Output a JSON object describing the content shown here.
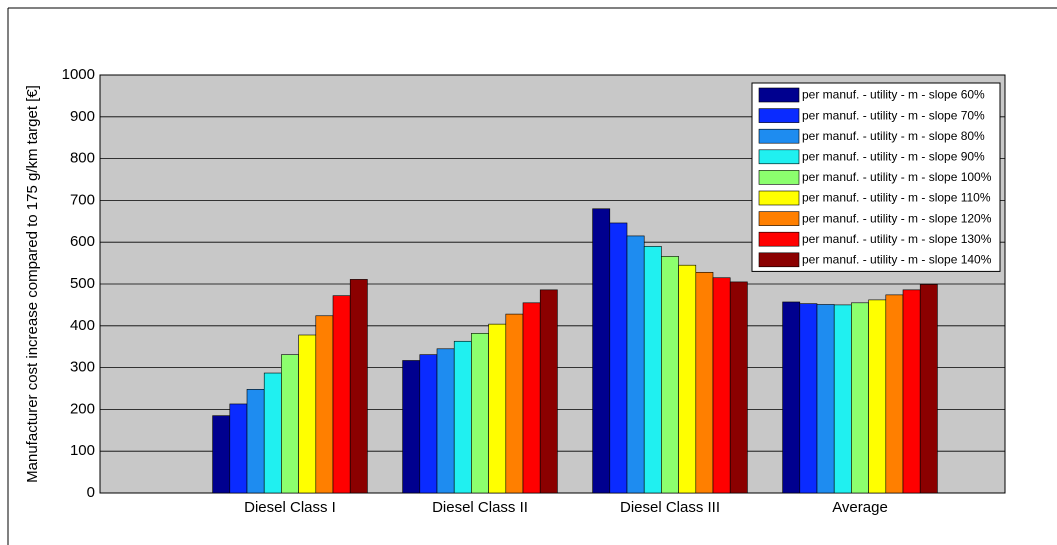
{
  "chart_data": {
    "type": "bar",
    "y_label": "Manufacturer cost increase compared to 175 g/km target [€]",
    "categories": [
      "Diesel Class I",
      "Diesel Class II",
      "Diesel Class III",
      "Average"
    ],
    "series": [
      {
        "name": "per manuf. - utility - m - slope 60%",
        "color": "#00008f",
        "values": [
          185,
          317,
          680,
          457
        ]
      },
      {
        "name": "per manuf. - utility - m - slope 70%",
        "color": "#0a2bff",
        "values": [
          213,
          331,
          646,
          453
        ]
      },
      {
        "name": "per manuf. - utility - m - slope 80%",
        "color": "#1e8cf0",
        "values": [
          248,
          345,
          615,
          451
        ]
      },
      {
        "name": "per manuf. - utility - m - slope 90%",
        "color": "#20f0f0",
        "values": [
          287,
          363,
          590,
          450
        ]
      },
      {
        "name": "per manuf. - utility - m - slope 100%",
        "color": "#8cff6e",
        "values": [
          331,
          382,
          566,
          455
        ]
      },
      {
        "name": "per manuf. - utility - m - slope 110%",
        "color": "#ffff00",
        "values": [
          378,
          404,
          545,
          462
        ]
      },
      {
        "name": "per manuf. - utility - m - slope 120%",
        "color": "#ff7f00",
        "values": [
          424,
          428,
          528,
          474
        ]
      },
      {
        "name": "per manuf. - utility - m - slope 130%",
        "color": "#ff0000",
        "values": [
          472,
          455,
          515,
          486
        ]
      },
      {
        "name": "per manuf. - utility - m - slope 140%",
        "color": "#8b0000",
        "values": [
          511,
          486,
          505,
          499
        ]
      }
    ],
    "ylim": [
      0,
      1000
    ],
    "yticks": [
      0,
      100,
      200,
      300,
      400,
      500,
      600,
      700,
      800,
      900,
      1000
    ],
    "grid": true,
    "legend_position": "top-right"
  }
}
